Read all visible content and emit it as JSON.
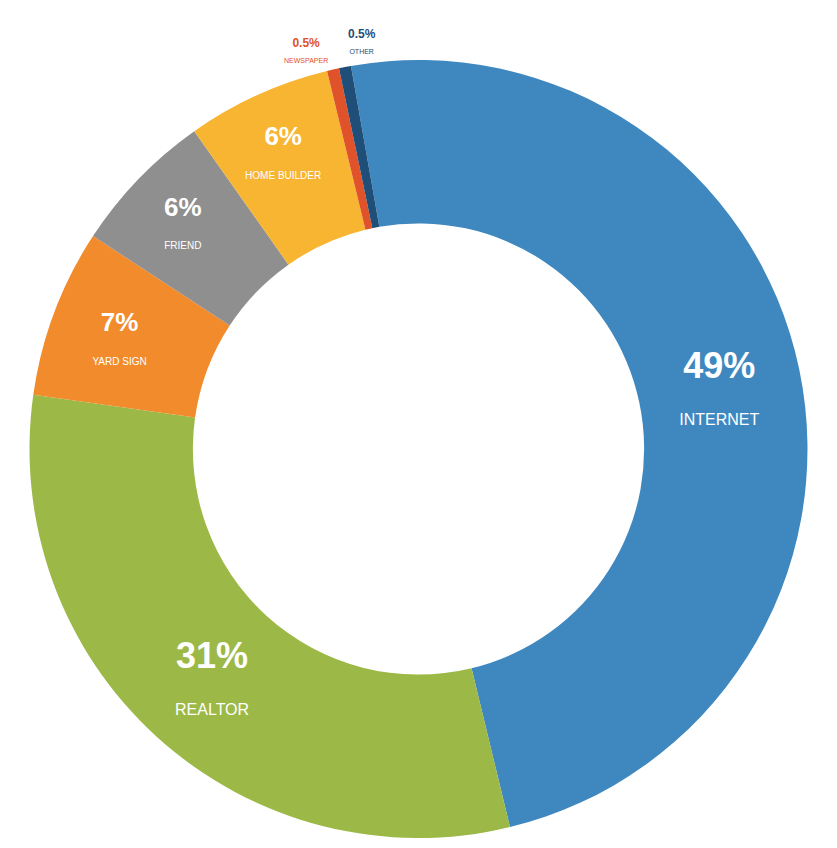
{
  "chart_data": {
    "type": "pie",
    "categories": [
      "INTERNET",
      "REALTOR",
      "YARD SIGN",
      "FRIEND",
      "HOME BUILDER",
      "NEWSPAPER",
      "OTHER"
    ],
    "values": [
      49,
      31,
      7,
      6,
      6,
      0.5,
      0.5
    ],
    "value_labels": [
      "49%",
      "31%",
      "7%",
      "6%",
      "6%",
      "0.5%",
      "0.5%"
    ],
    "colors": [
      "#3f88bf",
      "#9cb947",
      "#f28b2c",
      "#8f8f8f",
      "#f7b532",
      "#e0522a",
      "#1f4e79"
    ],
    "data_labels": true
  }
}
